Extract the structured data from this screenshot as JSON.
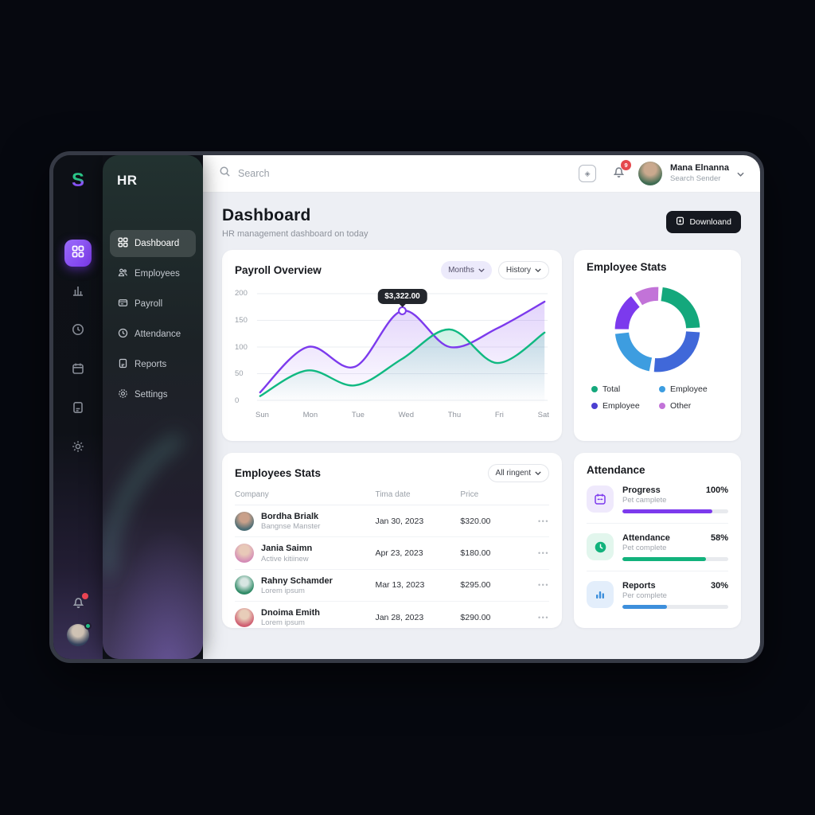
{
  "brand": {
    "logo": "S"
  },
  "sidebar": {
    "title": "HR",
    "items": [
      {
        "label": "Dashboard",
        "active": true
      },
      {
        "label": "Employees",
        "active": false
      },
      {
        "label": "Payroll",
        "active": false
      },
      {
        "label": "Attendance",
        "active": false
      },
      {
        "label": "Reports",
        "active": false
      },
      {
        "label": "Settings",
        "active": false
      }
    ]
  },
  "topbar": {
    "search_placeholder": "Search",
    "notification_count": "9",
    "user_name": "Mana Elnanna",
    "user_subtitle": "Search Sender"
  },
  "page_header": {
    "title": "Dashboard",
    "subtitle": "HR management dashboard on today",
    "download_label": "Downloand"
  },
  "payroll": {
    "title": "Payroll Overview",
    "filter_months": "Months",
    "filter_history": "History",
    "tooltip": "$3,322.00"
  },
  "chart_data": [
    {
      "type": "line",
      "title": "Payroll Overview",
      "x": [
        "Sun",
        "Mon",
        "Tue",
        "Wed",
        "Thu",
        "Fri",
        "Sat"
      ],
      "series": [
        {
          "name": "payroll-purple",
          "color": "#7c3aed",
          "values": [
            15,
            100,
            63,
            168,
            100,
            135,
            185
          ]
        },
        {
          "name": "payroll-green",
          "color": "#10b981",
          "values": [
            8,
            56,
            28,
            78,
            133,
            70,
            127
          ]
        }
      ],
      "ylim": [
        0,
        200
      ],
      "yticks": [
        0,
        50,
        100,
        150,
        200
      ],
      "grid": true,
      "tooltip": {
        "label": "$3,322.00",
        "x": "Wed",
        "series": "payroll-purple",
        "point_value": 168
      }
    },
    {
      "type": "pie",
      "title": "Employee Stats",
      "segments": [
        {
          "label": "Total",
          "color": "#14a87c",
          "value": 24
        },
        {
          "label": "Employee",
          "color": "#4068d9",
          "value": 27
        },
        {
          "label": "Employee",
          "color": "#3d9de0",
          "value": 22
        },
        {
          "label": "Employee",
          "color": "#7c3aed",
          "value": 16
        },
        {
          "label": "Other",
          "color": "#c273d8",
          "value": 11
        }
      ],
      "legend_position": "bottom"
    }
  ],
  "employee_stats": {
    "title": "Employee Stats",
    "legend": [
      {
        "label": "Total",
        "color": "#14a87c"
      },
      {
        "label": "Employee",
        "color": "#3d9de0"
      },
      {
        "label": "Employee",
        "color": "#4b3fd1"
      },
      {
        "label": "Other",
        "color": "#c273d8"
      }
    ]
  },
  "employees_table": {
    "title": "Employees Stats",
    "filter_label": "All ringent",
    "columns": [
      "Company",
      "Tima date",
      "Price"
    ],
    "row_action": "•••",
    "rows": [
      {
        "name": "Bordha Brialk",
        "role": "Bangnse Manster",
        "date": "Jan 30, 2023",
        "price": "$320.00"
      },
      {
        "name": "Jania Saimn",
        "role": "Active kitiinew",
        "date": "Apr 23, 2023",
        "price": "$180.00"
      },
      {
        "name": "Rahny Schamder",
        "role": "Lorem ipsum",
        "date": "Mar 13, 2023",
        "price": "$295.00"
      },
      {
        "name": "Dnoima Emith",
        "role": "Lorem ipsum",
        "date": "Jan 28, 2023",
        "price": "$290.00"
      }
    ]
  },
  "attendance": {
    "title": "Attendance",
    "rows": [
      {
        "label": "Progress",
        "sub": "Pet camplete",
        "value": "100%",
        "color": "#7c3aed",
        "fill": 85
      },
      {
        "label": "Attendance",
        "sub": "Pet complete",
        "value": "58%",
        "color": "#12b27c",
        "fill": 79
      },
      {
        "label": "Reports",
        "sub": "Per complete",
        "value": "30%",
        "color": "#3d8fdc",
        "fill": 42
      }
    ]
  }
}
